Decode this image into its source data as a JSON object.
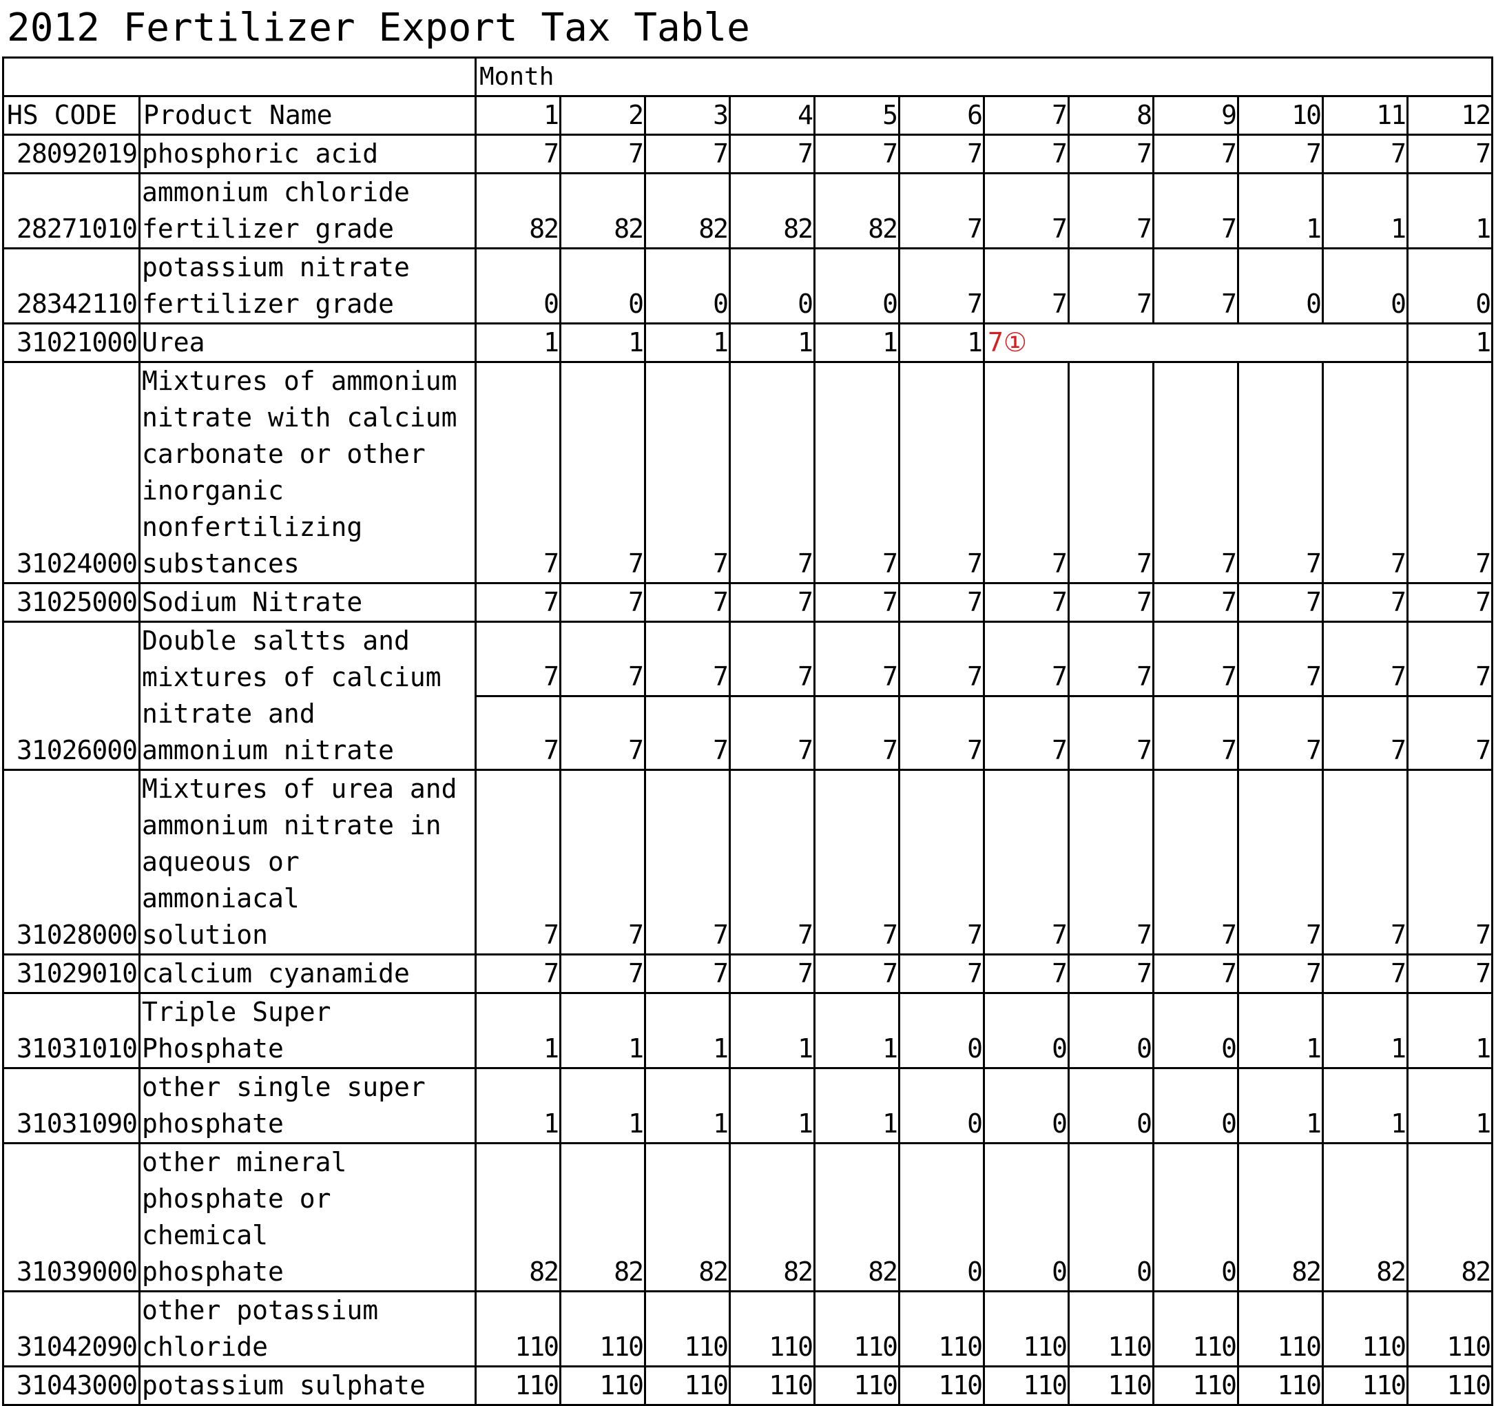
{
  "title": "2012 Fertilizer Export Tax Table",
  "header": {
    "month_label": "Month",
    "hs_code_label": "HS CODE",
    "product_label": "Product Name",
    "months": [
      "1",
      "2",
      "3",
      "4",
      "5",
      "6",
      "7",
      "8",
      "9",
      "10",
      "11",
      "12"
    ]
  },
  "rows": [
    {
      "code": "28092019",
      "name": "phosphoric acid",
      "values": [
        "7",
        "7",
        "7",
        "7",
        "7",
        "7",
        "7",
        "7",
        "7",
        "7",
        "7",
        "7"
      ]
    },
    {
      "code": "28271010",
      "name": "ammonium chloride\nfertilizer grade",
      "values": [
        "82",
        "82",
        "82",
        "82",
        "82",
        "7",
        "7",
        "7",
        "7",
        "1",
        "1",
        "1"
      ]
    },
    {
      "code": "28342110",
      "name": "potassium nitrate\nfertilizer grade",
      "values": [
        "0",
        "0",
        "0",
        "0",
        "0",
        "7",
        "7",
        "7",
        "7",
        "0",
        "0",
        "0"
      ]
    },
    {
      "code": "31021000",
      "name": "Urea",
      "values": [
        "1",
        "1",
        "1",
        "1",
        "1",
        "1"
      ],
      "note": "7①",
      "tail_values": [
        "1",
        "1"
      ]
    },
    {
      "code": "31024000",
      "name": "Mixtures of ammonium\nnitrate with calcium\ncarbonate or other\ninorganic\nnonfertilizing\nsubstances",
      "values": [
        "7",
        "7",
        "7",
        "7",
        "7",
        "7",
        "7",
        "7",
        "7",
        "7",
        "7",
        "7"
      ]
    },
    {
      "code": "31025000",
      "name": "Sodium Nitrate",
      "values": [
        "7",
        "7",
        "7",
        "7",
        "7",
        "7",
        "7",
        "7",
        "7",
        "7",
        "7",
        "7"
      ]
    },
    {
      "code": "31026000",
      "name": "Double saltts and\nmixtures of calcium\nnitrate and\nammonium nitrate",
      "values": [
        "7",
        "7",
        "7",
        "7",
        "7",
        "7",
        "7",
        "7",
        "7",
        "7",
        "7",
        "7"
      ],
      "values2": [
        "7",
        "7",
        "7",
        "7",
        "7",
        "7",
        "7",
        "7",
        "7",
        "7",
        "7",
        "7"
      ]
    },
    {
      "code": "31028000",
      "name": "Mixtures of urea and\nammonium nitrate in\naqueous or ammoniacal\nsolution",
      "values": [
        "7",
        "7",
        "7",
        "7",
        "7",
        "7",
        "7",
        "7",
        "7",
        "7",
        "7",
        "7"
      ]
    },
    {
      "code": "31029010",
      "name": "calcium cyanamide",
      "values": [
        "7",
        "7",
        "7",
        "7",
        "7",
        "7",
        "7",
        "7",
        "7",
        "7",
        "7",
        "7"
      ]
    },
    {
      "code": "31031010",
      "name": "Triple Super\nPhosphate",
      "values": [
        "1",
        "1",
        "1",
        "1",
        "1",
        "0",
        "0",
        "0",
        "0",
        "1",
        "1",
        "1"
      ]
    },
    {
      "code": "31031090",
      "name": "other single super\nphosphate",
      "values": [
        "1",
        "1",
        "1",
        "1",
        "1",
        "0",
        "0",
        "0",
        "0",
        "1",
        "1",
        "1"
      ]
    },
    {
      "code": "31039000",
      "name": "other mineral\nphosphate or chemical\nphosphate",
      "values": [
        "82",
        "82",
        "82",
        "82",
        "82",
        "0",
        "0",
        "0",
        "0",
        "82",
        "82",
        "82"
      ]
    },
    {
      "code": "31042090",
      "name": "other potassium\nchloride",
      "values": [
        "110",
        "110",
        "110",
        "110",
        "110",
        "110",
        "110",
        "110",
        "110",
        "110",
        "110",
        "110"
      ]
    },
    {
      "code": "31043000",
      "name": "potassium sulphate",
      "values": [
        "110",
        "110",
        "110",
        "110",
        "110",
        "110",
        "110",
        "110",
        "110",
        "110",
        "110",
        "110"
      ]
    }
  ],
  "colors": {
    "note": "#d42020",
    "border": "#000000"
  }
}
